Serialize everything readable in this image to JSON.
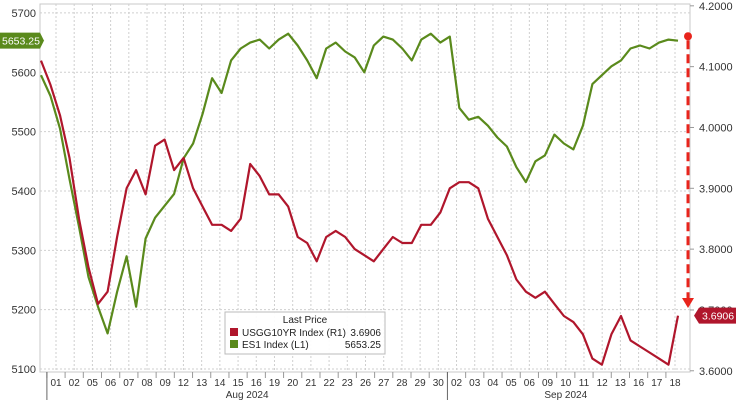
{
  "chart_data": {
    "type": "line",
    "left_axis": {
      "ticks": [
        5100,
        5200,
        5300,
        5400,
        5500,
        5600,
        5700
      ],
      "ylim": [
        5095,
        5715
      ]
    },
    "right_axis": {
      "ticks": [
        "3.6000",
        "3.7000",
        "3.8000",
        "3.9000",
        "4.0000",
        "4.1000",
        "4.2000"
      ],
      "tick_values": [
        3.6,
        3.7,
        3.8,
        3.9,
        4.0,
        4.1,
        4.2
      ],
      "ylim": [
        3.598,
        4.203
      ]
    },
    "x_axis": {
      "day_ticks": [
        "01",
        "02",
        "05",
        "06",
        "07",
        "08",
        "09",
        "12",
        "13",
        "14",
        "15",
        "16",
        "19",
        "20",
        "21",
        "22",
        "23",
        "26",
        "27",
        "28",
        "29",
        "30",
        "02",
        "03",
        "04",
        "05",
        "06",
        "09",
        "10",
        "11",
        "12",
        "13",
        "16",
        "17",
        "18"
      ],
      "month_labels": [
        {
          "label": "Aug 2024",
          "start": 0,
          "end": 21
        },
        {
          "label": "Sep 2024",
          "start": 22,
          "end": 34
        }
      ]
    },
    "series": [
      {
        "name": "ES1 Index  (L1)",
        "axis": "left",
        "color": "#5a8a1c",
        "last_value": "5653.25",
        "values": [
          5595,
          5560,
          5505,
          5420,
          5340,
          5255,
          5205,
          5160,
          5230,
          5290,
          5205,
          5320,
          5355,
          5375,
          5395,
          5455,
          5480,
          5530,
          5590,
          5565,
          5620,
          5640,
          5650,
          5655,
          5640,
          5655,
          5665,
          5645,
          5620,
          5590,
          5640,
          5650,
          5635,
          5625,
          5600,
          5645,
          5660,
          5655,
          5640,
          5620,
          5655,
          5665,
          5650,
          5660,
          5540,
          5520,
          5525,
          5510,
          5490,
          5475,
          5440,
          5415,
          5450,
          5460,
          5495,
          5480,
          5470,
          5510,
          5580,
          5595,
          5610,
          5620,
          5640,
          5645,
          5640,
          5650,
          5655,
          5653.25
        ]
      },
      {
        "name": "USGG10YR Index  (R1)",
        "axis": "right",
        "color": "#b0162c",
        "last_value": "3.6906",
        "values": [
          4.11,
          4.07,
          4.02,
          3.95,
          3.85,
          3.77,
          3.71,
          3.73,
          3.82,
          3.9,
          3.93,
          3.89,
          3.97,
          3.98,
          3.93,
          3.95,
          3.9,
          3.87,
          3.84,
          3.84,
          3.83,
          3.85,
          3.94,
          3.92,
          3.89,
          3.89,
          3.87,
          3.82,
          3.81,
          3.78,
          3.82,
          3.83,
          3.82,
          3.8,
          3.79,
          3.78,
          3.8,
          3.82,
          3.81,
          3.81,
          3.84,
          3.84,
          3.86,
          3.9,
          3.91,
          3.91,
          3.9,
          3.85,
          3.82,
          3.79,
          3.75,
          3.73,
          3.72,
          3.73,
          3.71,
          3.69,
          3.68,
          3.66,
          3.62,
          3.61,
          3.66,
          3.69,
          3.65,
          3.64,
          3.63,
          3.62,
          3.61,
          3.6906
        ]
      }
    ],
    "legend": {
      "title": "Last Price",
      "placement": "bottom-center",
      "items": [
        {
          "label": "USGG10YR Index  (R1)",
          "value": "3.6906",
          "color": "#b0162c"
        },
        {
          "label": "ES1 Index  (L1)",
          "value": "5653.25",
          "color": "#5a8a1c"
        }
      ]
    },
    "last_value_tags": [
      {
        "axis": "left",
        "text": "5653.25",
        "color": "#5a8a1c"
      },
      {
        "axis": "right",
        "text": "3.6906",
        "color": "#b0162c"
      }
    ],
    "annotation": {
      "type": "dashed-arrow",
      "color": "#e8241c",
      "from_value": 4.15,
      "to_value": 3.7,
      "axis": "right"
    },
    "grid": true
  }
}
